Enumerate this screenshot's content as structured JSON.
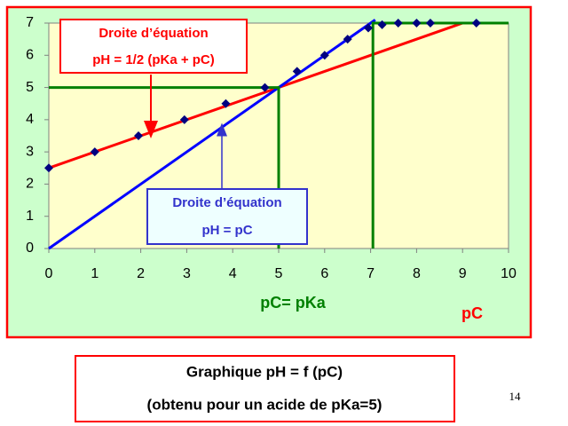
{
  "chart_data": {
    "type": "scatter",
    "xlim": [
      0,
      10
    ],
    "ylim": [
      0,
      7
    ],
    "xticks": [
      0,
      1,
      2,
      3,
      4,
      5,
      6,
      7,
      8,
      9,
      10
    ],
    "yticks": [
      0,
      1,
      2,
      3,
      4,
      5,
      6,
      7
    ],
    "series": [
      {
        "style": "line",
        "color": "#ff0000",
        "x": [
          0,
          9
        ],
        "values": [
          2.5,
          7
        ]
      },
      {
        "style": "line",
        "color": "#0000ff",
        "x": [
          0,
          7.1
        ],
        "values": [
          0,
          7.1
        ]
      },
      {
        "style": "line",
        "color": "#008000",
        "x": [
          0,
          5,
          5
        ],
        "values": [
          5,
          5,
          0
        ]
      },
      {
        "style": "line",
        "color": "#008000",
        "x": [
          7.05,
          7.05,
          10
        ],
        "values": [
          0,
          7,
          7
        ]
      },
      {
        "style": "markers",
        "color": "#000080",
        "x": [
          0,
          1,
          1.95,
          2.95,
          3.85,
          4.7,
          5.4,
          6,
          6.5,
          6.95,
          7.25,
          7.6,
          8,
          8.3,
          9.3
        ],
        "values": [
          2.5,
          3,
          3.5,
          4,
          4.5,
          5,
          5.5,
          6,
          6.5,
          6.85,
          6.95,
          7,
          7,
          7,
          7
        ]
      }
    ],
    "annotations": {
      "red_box": [
        "Droite d’équation",
        "pH = 1/2 (pKa + pC)"
      ],
      "blue_box": [
        "Droite d’équation",
        "pH = pC"
      ],
      "pka_label": "pC= pKa",
      "x_label": "pC"
    }
  },
  "caption": [
    "Graphique pH = f (pC)",
    "(obtenu pour un acide de pKa=5)"
  ],
  "page_number": "14"
}
